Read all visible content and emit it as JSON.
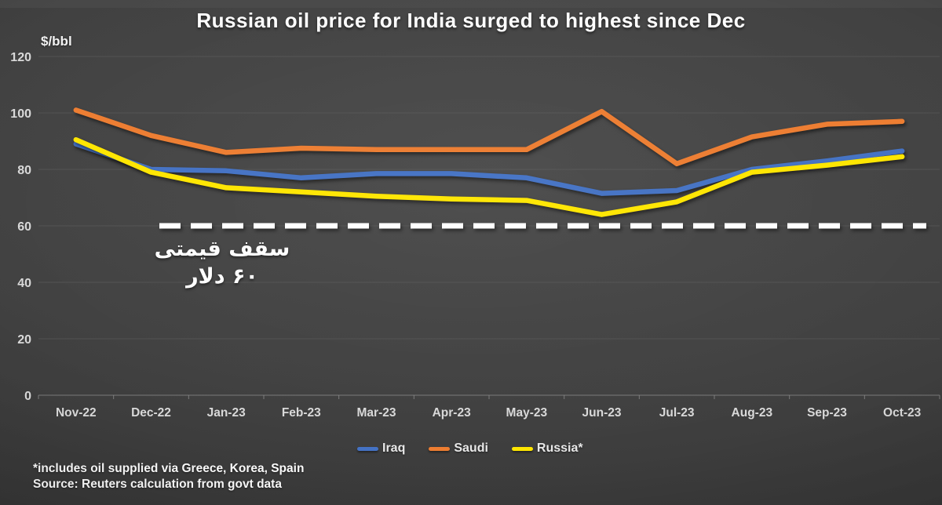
{
  "chart_data": {
    "type": "line",
    "title": "Russian oil price for India surged to highest since Dec",
    "ylabel": "$/bbl",
    "xlabel": "",
    "ylim": [
      0,
      120
    ],
    "yticks": [
      0,
      20,
      40,
      60,
      80,
      100,
      120
    ],
    "grid": true,
    "legend_position": "bottom",
    "categories": [
      "Nov-22",
      "Dec-22",
      "Jan-23",
      "Feb-23",
      "Mar-23",
      "Apr-23",
      "May-23",
      "Jun-23",
      "Jul-23",
      "Aug-23",
      "Sep-23",
      "Oct-23"
    ],
    "series": [
      {
        "name": "Iraq",
        "color": "#4472C4",
        "values": [
          89,
          80,
          79.5,
          77,
          78.5,
          78.5,
          77,
          71.5,
          72.5,
          80,
          83,
          86.5
        ]
      },
      {
        "name": "Saudi",
        "color": "#ED7D31",
        "values": [
          101,
          92,
          86,
          87.5,
          87,
          87,
          87,
          100.5,
          82,
          91.5,
          96,
          97
        ]
      },
      {
        "name": "Russia*",
        "color": "#FFE600",
        "values": [
          90.5,
          79,
          73.5,
          72,
          70.5,
          69.5,
          69,
          64,
          68.5,
          79,
          81.5,
          84.5
        ]
      }
    ],
    "price_cap_line": {
      "value": 60,
      "color": "#FFFFFF",
      "style": "dashed",
      "annotation_line1": "سقف قیمتی",
      "annotation_line2": "۶۰ دلار"
    }
  },
  "y_axis": {
    "unit_label": "$/bbl"
  },
  "footnotes": {
    "note": "*includes oil supplied via Greece, Korea, Spain",
    "source": "Source: Reuters calculation from govt data"
  }
}
